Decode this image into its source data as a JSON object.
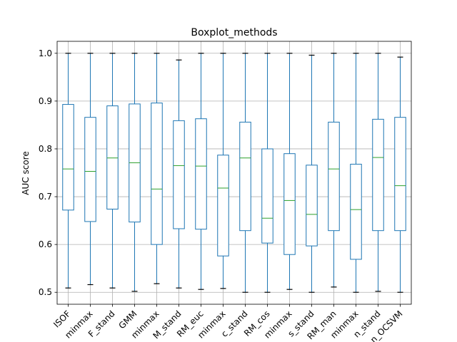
{
  "chart_data": {
    "type": "boxplot",
    "title": "Boxplot_methods",
    "xlabel": "",
    "ylabel": "AUC score",
    "ylim": [
      0.475,
      1.025
    ],
    "yticks": [
      0.5,
      0.6,
      0.7,
      0.8,
      0.9,
      1.0
    ],
    "ytick_labels": [
      "0.5",
      "0.6",
      "0.7",
      "0.8",
      "0.9",
      "1.0"
    ],
    "grid": true,
    "categories": [
      "ISOF",
      "minmax",
      "F_stand",
      "GMM",
      "minmax",
      "M_stand",
      "RM_euc",
      "minmax",
      "c_stand",
      "RM_cos",
      "minmax",
      "s_stand",
      "RM_man",
      "minmax",
      "n_stand",
      "n_OCSVM"
    ],
    "boxes": [
      {
        "whisker_low": 0.509,
        "q1": 0.672,
        "median": 0.758,
        "q3": 0.893,
        "whisker_high": 1.0
      },
      {
        "whisker_low": 0.516,
        "q1": 0.648,
        "median": 0.753,
        "q3": 0.866,
        "whisker_high": 1.0
      },
      {
        "whisker_low": 0.509,
        "q1": 0.674,
        "median": 0.781,
        "q3": 0.89,
        "whisker_high": 1.0
      },
      {
        "whisker_low": 0.502,
        "q1": 0.647,
        "median": 0.771,
        "q3": 0.894,
        "whisker_high": 1.0
      },
      {
        "whisker_low": 0.518,
        "q1": 0.6,
        "median": 0.716,
        "q3": 0.896,
        "whisker_high": 1.0
      },
      {
        "whisker_low": 0.509,
        "q1": 0.633,
        "median": 0.765,
        "q3": 0.859,
        "whisker_high": 0.986
      },
      {
        "whisker_low": 0.506,
        "q1": 0.632,
        "median": 0.764,
        "q3": 0.863,
        "whisker_high": 1.0
      },
      {
        "whisker_low": 0.508,
        "q1": 0.576,
        "median": 0.718,
        "q3": 0.787,
        "whisker_high": 1.0
      },
      {
        "whisker_low": 0.5,
        "q1": 0.629,
        "median": 0.781,
        "q3": 0.856,
        "whisker_high": 1.0
      },
      {
        "whisker_low": 0.5,
        "q1": 0.603,
        "median": 0.655,
        "q3": 0.8,
        "whisker_high": 1.0
      },
      {
        "whisker_low": 0.506,
        "q1": 0.579,
        "median": 0.692,
        "q3": 0.79,
        "whisker_high": 1.0
      },
      {
        "whisker_low": 0.5,
        "q1": 0.597,
        "median": 0.663,
        "q3": 0.766,
        "whisker_high": 0.996
      },
      {
        "whisker_low": 0.511,
        "q1": 0.629,
        "median": 0.758,
        "q3": 0.856,
        "whisker_high": 1.0
      },
      {
        "whisker_low": 0.5,
        "q1": 0.569,
        "median": 0.673,
        "q3": 0.768,
        "whisker_high": 1.0
      },
      {
        "whisker_low": 0.502,
        "q1": 0.629,
        "median": 0.782,
        "q3": 0.862,
        "whisker_high": 1.0
      },
      {
        "whisker_low": 0.5,
        "q1": 0.629,
        "median": 0.723,
        "q3": 0.866,
        "whisker_high": 0.992
      }
    ],
    "colors": {
      "box": "#1f77b4",
      "median": "#2ca02c",
      "whisker_cap": "#000000",
      "grid": "#b0b0b0"
    }
  }
}
